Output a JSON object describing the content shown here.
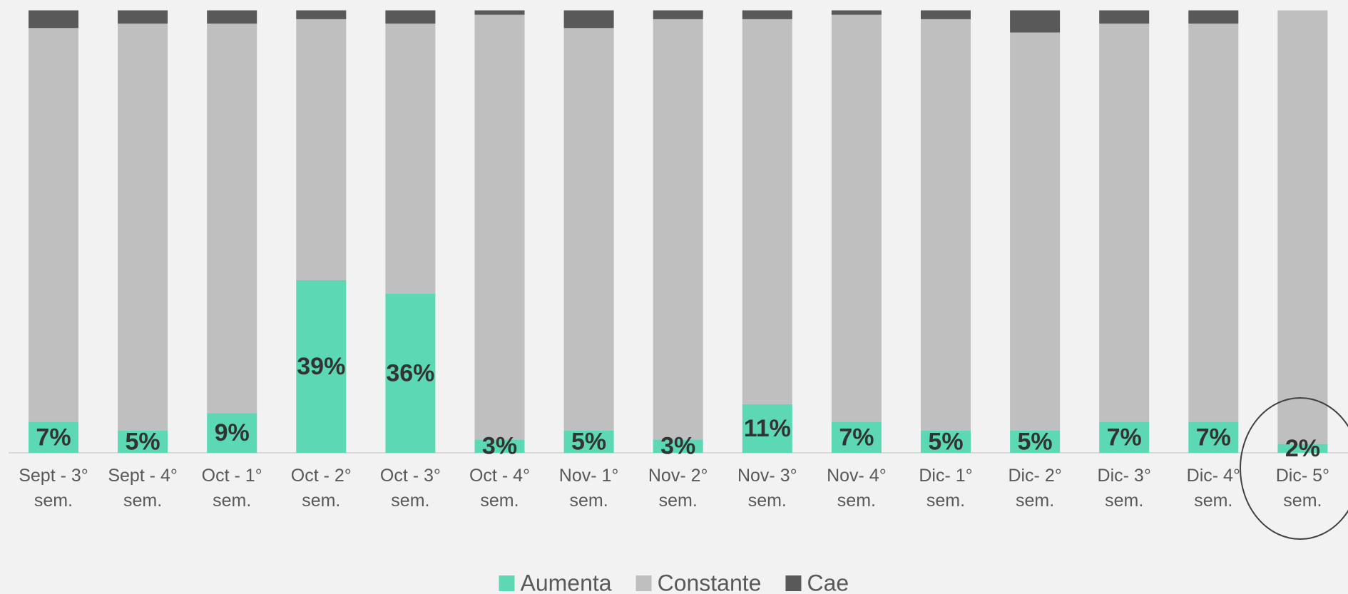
{
  "chart_data": {
    "type": "stacked_bar_100",
    "categories": [
      "Sept - 3° sem.",
      "Sept - 4° sem.",
      "Oct - 1° sem.",
      "Oct - 2° sem.",
      "Oct - 3° sem.",
      "Oct - 4° sem.",
      "Nov- 1° sem.",
      "Nov- 2° sem.",
      "Nov- 3° sem.",
      "Nov- 4° sem.",
      "Dic- 1° sem.",
      "Dic- 2° sem.",
      "Dic- 3° sem.",
      "Dic- 4° sem.",
      "Dic- 5° sem."
    ],
    "series": [
      {
        "name": "Aumenta",
        "color": "#5cd9b4",
        "values": [
          7,
          5,
          9,
          39,
          36,
          3,
          5,
          3,
          11,
          7,
          5,
          5,
          7,
          7,
          2
        ],
        "value_labels": [
          "7%",
          "5%",
          "9%",
          "39%",
          "36%",
          "3%",
          "5%",
          "3%",
          "11%",
          "7%",
          "5%",
          "5%",
          "7%",
          "7%",
          "2%"
        ]
      },
      {
        "name": "Constante",
        "color": "#bfbfbf",
        "values": [
          89,
          92,
          88,
          59,
          61,
          96,
          91,
          95,
          87,
          92,
          93,
          90,
          90,
          90,
          98
        ]
      },
      {
        "name": "Cae",
        "color": "#595959",
        "values": [
          4,
          3,
          3,
          2,
          3,
          1,
          4,
          2,
          2,
          1,
          2,
          5,
          3,
          3,
          0
        ]
      }
    ],
    "ylim": [
      0,
      100
    ],
    "legend": "bottom"
  }
}
